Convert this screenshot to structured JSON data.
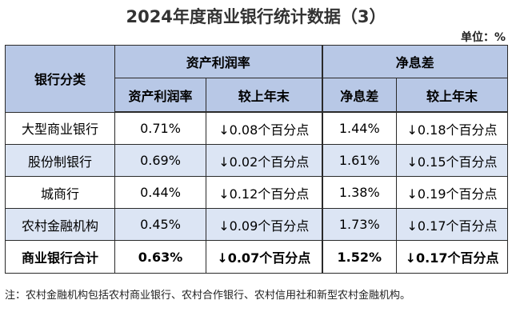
{
  "title": "2024年度商业银行统计数据（3）",
  "unit": "单位：%",
  "header": {
    "row_label": "银行分类",
    "group1": "资产利润率",
    "group2": "净息差",
    "sub": [
      "资产利润率",
      "较上年末",
      "净息差",
      "较上年末"
    ]
  },
  "rows": [
    {
      "name": "大型商业银行",
      "roa": "0.71%",
      "roa_change": "↓0.08个百分点",
      "nim": "1.44%",
      "nim_change": "↓0.18个百分点"
    },
    {
      "name": "股份制银行",
      "roa": "0.69%",
      "roa_change": "↓0.02个百分点",
      "nim": "1.61%",
      "nim_change": "↓0.15个百分点"
    },
    {
      "name": "城商行",
      "roa": "0.44%",
      "roa_change": "↓0.12个百分点",
      "nim": "1.38%",
      "nim_change": "↓0.19个百分点"
    },
    {
      "name": "农村金融机构",
      "roa": "0.45%",
      "roa_change": "↓0.09个百分点",
      "nim": "1.73%",
      "nim_change": "↓0.17个百分点"
    },
    {
      "name": "商业银行合计",
      "roa": "0.63%",
      "roa_change": "↓0.07个百分点",
      "nim": "1.52%",
      "nim_change": "↓0.17个百分点"
    }
  ],
  "note": "注：农村金融机构包括农村商业银行、农村合作银行、农村信用社和新型农村金融机构。",
  "colors": {
    "header_bg": "#b8c8e6",
    "alt_row_bg": "#dce5f4",
    "border": "#2a2a2a"
  }
}
